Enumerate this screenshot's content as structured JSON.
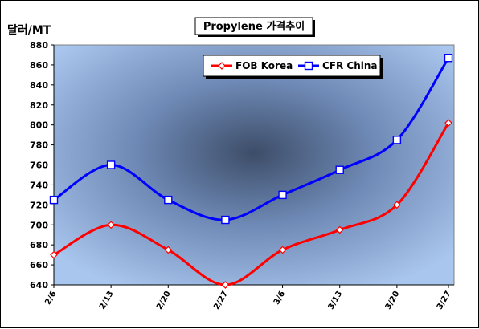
{
  "chart_data": {
    "type": "line",
    "title": "Propylene 가격추이",
    "ylabel": "달러/MT",
    "xlabel": "",
    "categories": [
      "2/6",
      "2/13",
      "2/20",
      "2/27",
      "3/6",
      "3/13",
      "3/20",
      "3/27"
    ],
    "ylim": [
      640,
      880
    ],
    "yticks": [
      640,
      660,
      680,
      700,
      720,
      740,
      760,
      780,
      800,
      820,
      840,
      860,
      880
    ],
    "grid": false,
    "legend_position": "top-right",
    "series": [
      {
        "name": "FOB Korea",
        "color": "#ff0000",
        "marker": "diamond",
        "values": [
          670,
          700,
          675,
          640,
          675,
          695,
          720,
          802
        ]
      },
      {
        "name": "CFR China",
        "color": "#0000ff",
        "marker": "square",
        "values": [
          725,
          760,
          725,
          705,
          730,
          755,
          785,
          867
        ]
      }
    ]
  }
}
